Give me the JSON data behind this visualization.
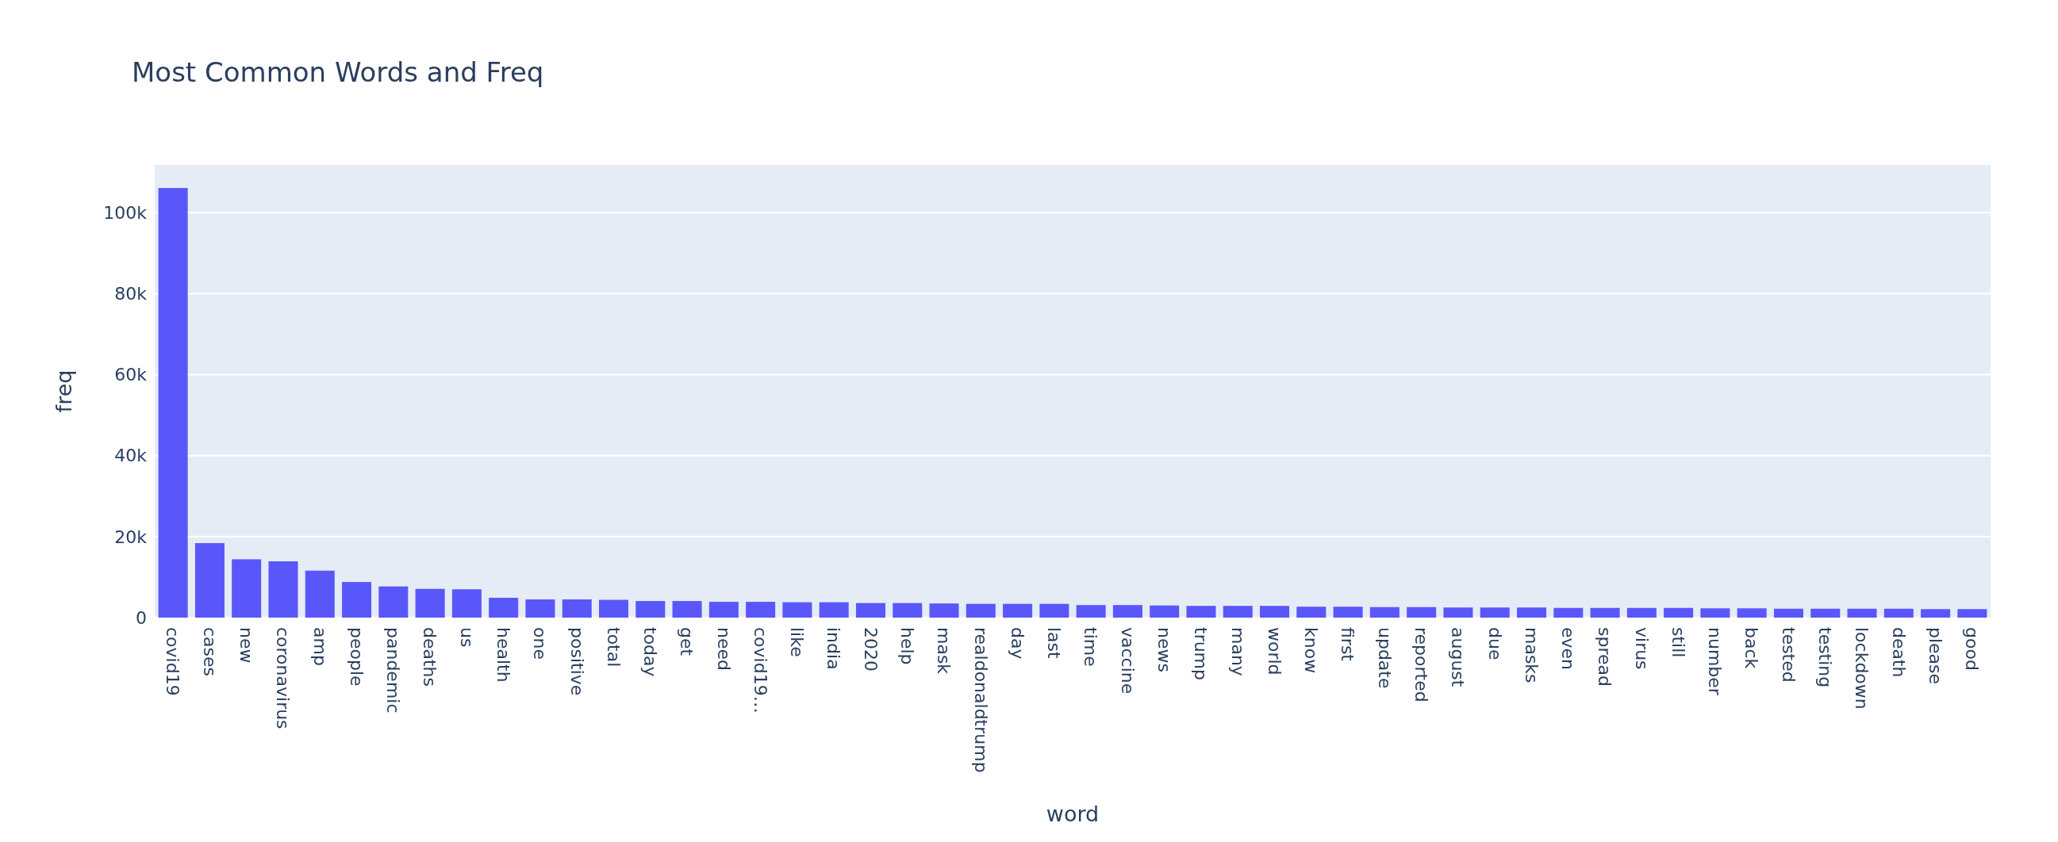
{
  "chart_data": {
    "type": "bar",
    "title": "Most Common Words and Freq",
    "xlabel": "word",
    "ylabel": "freq",
    "categories": [
      "covid19",
      "cases",
      "new",
      "coronavirus",
      "amp",
      "people",
      "pandemic",
      "deaths",
      "us",
      "health",
      "one",
      "positive",
      "total",
      "today",
      "get",
      "need",
      "covid19…",
      "like",
      "india",
      "2020",
      "help",
      "mask",
      "realdonaldtrump",
      "day",
      "last",
      "time",
      "vaccine",
      "news",
      "trump",
      "many",
      "world",
      "know",
      "first",
      "update",
      "reported",
      "august",
      "due",
      "masks",
      "even",
      "spread",
      "virus",
      "still",
      "number",
      "back",
      "tested",
      "testing",
      "lockdown",
      "death",
      "please",
      "good"
    ],
    "values": [
      106100,
      18400,
      14400,
      13900,
      11600,
      8800,
      7700,
      7100,
      7000,
      4900,
      4500,
      4500,
      4400,
      4100,
      4100,
      3900,
      3900,
      3800,
      3800,
      3600,
      3600,
      3500,
      3400,
      3400,
      3400,
      3100,
      3100,
      3000,
      2900,
      2900,
      2900,
      2700,
      2700,
      2600,
      2600,
      2500,
      2500,
      2500,
      2400,
      2400,
      2400,
      2400,
      2300,
      2300,
      2200,
      2200,
      2200,
      2200,
      2100,
      2100
    ],
    "color": "#5a57fa",
    "ylim": [
      0,
      111800
    ],
    "yticks": [
      0,
      {
        "value": 20000,
        "label": "20k"
      },
      {
        "value": 40000,
        "label": "40k"
      },
      {
        "value": 60000,
        "label": "60k"
      },
      {
        "value": 80000,
        "label": "80k"
      },
      {
        "value": 100000,
        "label": "100k"
      }
    ],
    "grid": "y"
  }
}
